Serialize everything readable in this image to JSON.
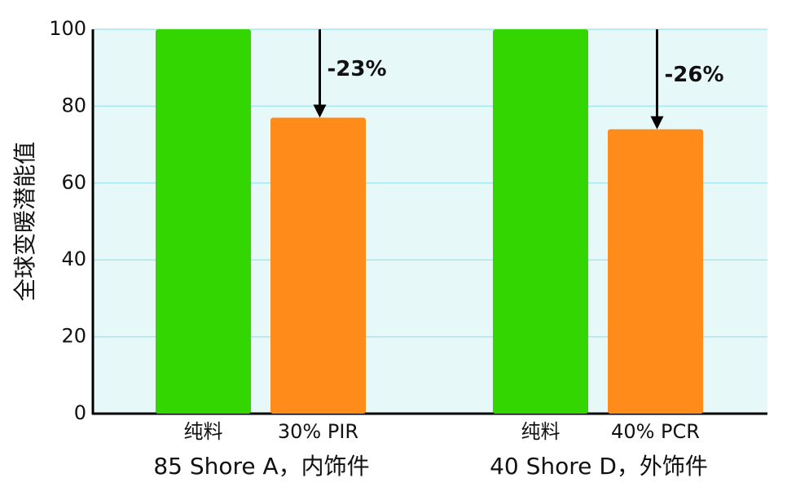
{
  "chart_data": {
    "type": "bar",
    "y_label": "全球变暖潜能值",
    "categories": [
      "纯料",
      "30% PIR",
      "纯料",
      "40% PCR"
    ],
    "values": [
      100,
      77,
      100,
      74
    ],
    "colors": [
      "#33d600",
      "#ff8c1a",
      "#33d600",
      "#ff8c1a"
    ],
    "groups": [
      "85 Shore A，内饰件",
      "40 Shore D，外饰件"
    ],
    "annotations": [
      "-23%",
      "-26%"
    ],
    "ylim": [
      0,
      100
    ],
    "yticks": [
      0,
      20,
      40,
      60,
      80,
      100
    ],
    "grid": true
  }
}
